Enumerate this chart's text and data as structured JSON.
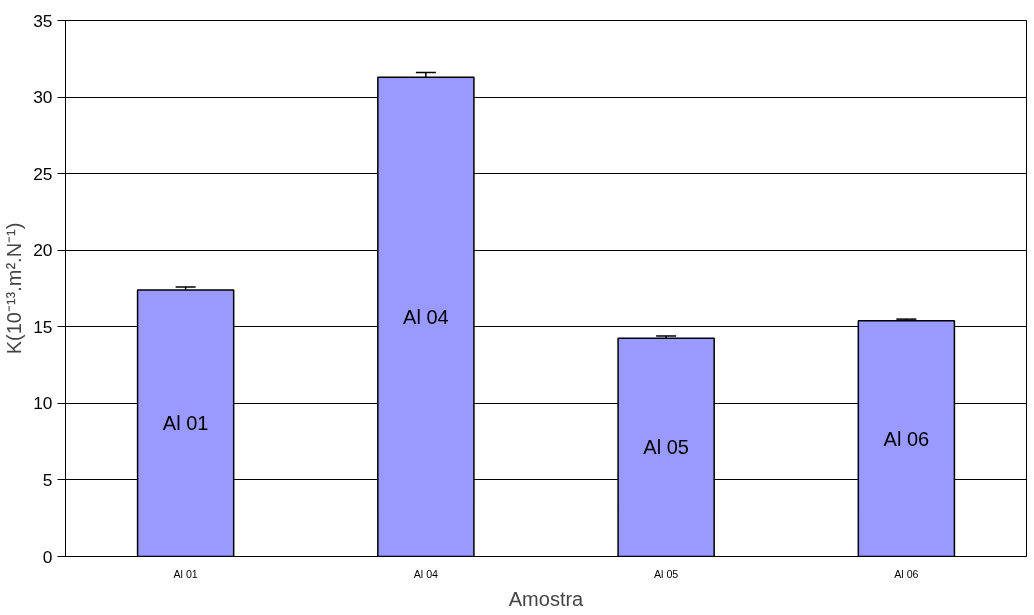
{
  "chart_data": {
    "type": "bar",
    "xlabel": "Amostra",
    "ylabel": "K(10⁻¹³.m².N⁻¹)",
    "categories": [
      "Al 01",
      "Al 04",
      "Al 05",
      "Al 06"
    ],
    "values": [
      17.4,
      31.3,
      14.25,
      15.4
    ],
    "errors": [
      0.2,
      0.3,
      0.15,
      0.1
    ],
    "color": "#9999ff",
    "ylim": [
      0,
      35
    ],
    "yticks": [
      0,
      5,
      10,
      15,
      20,
      25,
      30,
      35
    ],
    "grid": "y",
    "annotations": [
      "Al 01",
      "Al 04",
      "Al 05",
      "Al 06"
    ]
  }
}
